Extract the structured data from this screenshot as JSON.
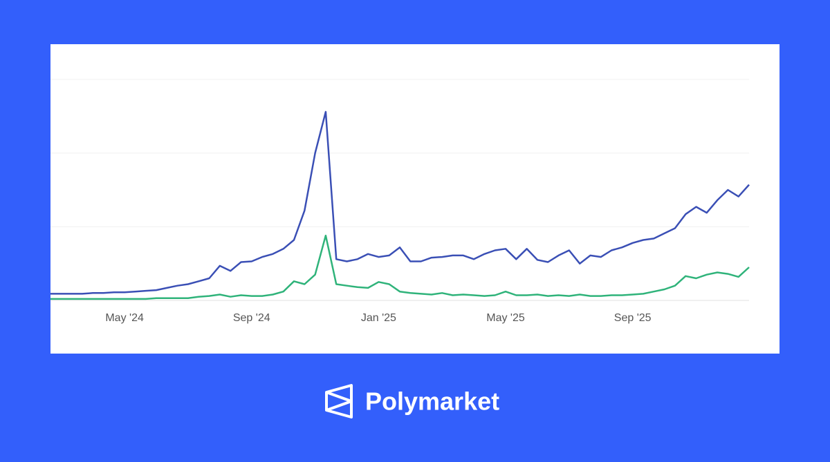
{
  "chart_data": {
    "type": "line",
    "categories": [
      null,
      null,
      null,
      null,
      null,
      null,
      null,
      "May '24",
      null,
      null,
      null,
      null,
      null,
      null,
      null,
      null,
      null,
      null,
      null,
      "Sep '24",
      null,
      null,
      null,
      null,
      null,
      null,
      null,
      null,
      null,
      null,
      null,
      "Jan '25",
      null,
      null,
      null,
      null,
      null,
      null,
      null,
      null,
      null,
      null,
      null,
      "May '25",
      null,
      null,
      null,
      null,
      null,
      null,
      null,
      null,
      null,
      null,
      null,
      "Sep '25",
      null,
      null,
      null,
      null,
      null,
      null,
      null,
      null,
      null,
      null,
      null
    ],
    "series": [
      {
        "color": "#3a4fb5",
        "values": [
          0.09,
          0.09,
          0.09,
          0.09,
          0.1,
          0.1,
          0.11,
          0.11,
          0.12,
          0.13,
          0.14,
          0.17,
          0.2,
          0.22,
          0.26,
          0.3,
          0.47,
          0.4,
          0.52,
          0.53,
          0.59,
          0.63,
          0.7,
          0.82,
          1.22,
          2.0,
          2.56,
          0.56,
          0.53,
          0.56,
          0.63,
          0.59,
          0.61,
          0.72,
          0.53,
          0.53,
          0.58,
          0.59,
          0.61,
          0.61,
          0.56,
          0.63,
          0.68,
          0.7,
          0.56,
          0.7,
          0.55,
          0.52,
          0.61,
          0.68,
          0.5,
          0.61,
          0.59,
          0.68,
          0.72,
          0.78,
          0.82,
          0.84,
          0.91,
          0.98,
          1.17,
          1.27,
          1.19,
          1.36,
          1.5,
          1.41,
          1.57
        ]
      },
      {
        "color": "#2fb37a",
        "values": [
          0.02,
          0.02,
          0.02,
          0.02,
          0.02,
          0.02,
          0.02,
          0.02,
          0.02,
          0.02,
          0.03,
          0.03,
          0.03,
          0.03,
          0.05,
          0.06,
          0.08,
          0.05,
          0.07,
          0.06,
          0.06,
          0.08,
          0.12,
          0.26,
          0.22,
          0.35,
          0.88,
          0.22,
          0.2,
          0.18,
          0.17,
          0.25,
          0.22,
          0.12,
          0.1,
          0.09,
          0.08,
          0.1,
          0.07,
          0.08,
          0.07,
          0.06,
          0.07,
          0.12,
          0.07,
          0.07,
          0.08,
          0.06,
          0.07,
          0.06,
          0.08,
          0.06,
          0.06,
          0.07,
          0.07,
          0.08,
          0.09,
          0.12,
          0.15,
          0.2,
          0.33,
          0.3,
          0.35,
          0.38,
          0.36,
          0.32,
          0.45
        ]
      }
    ],
    "ylim": [
      0,
      3
    ],
    "yticks": [
      0,
      1,
      2,
      3
    ],
    "grid": true
  },
  "brand": "Polymarket"
}
